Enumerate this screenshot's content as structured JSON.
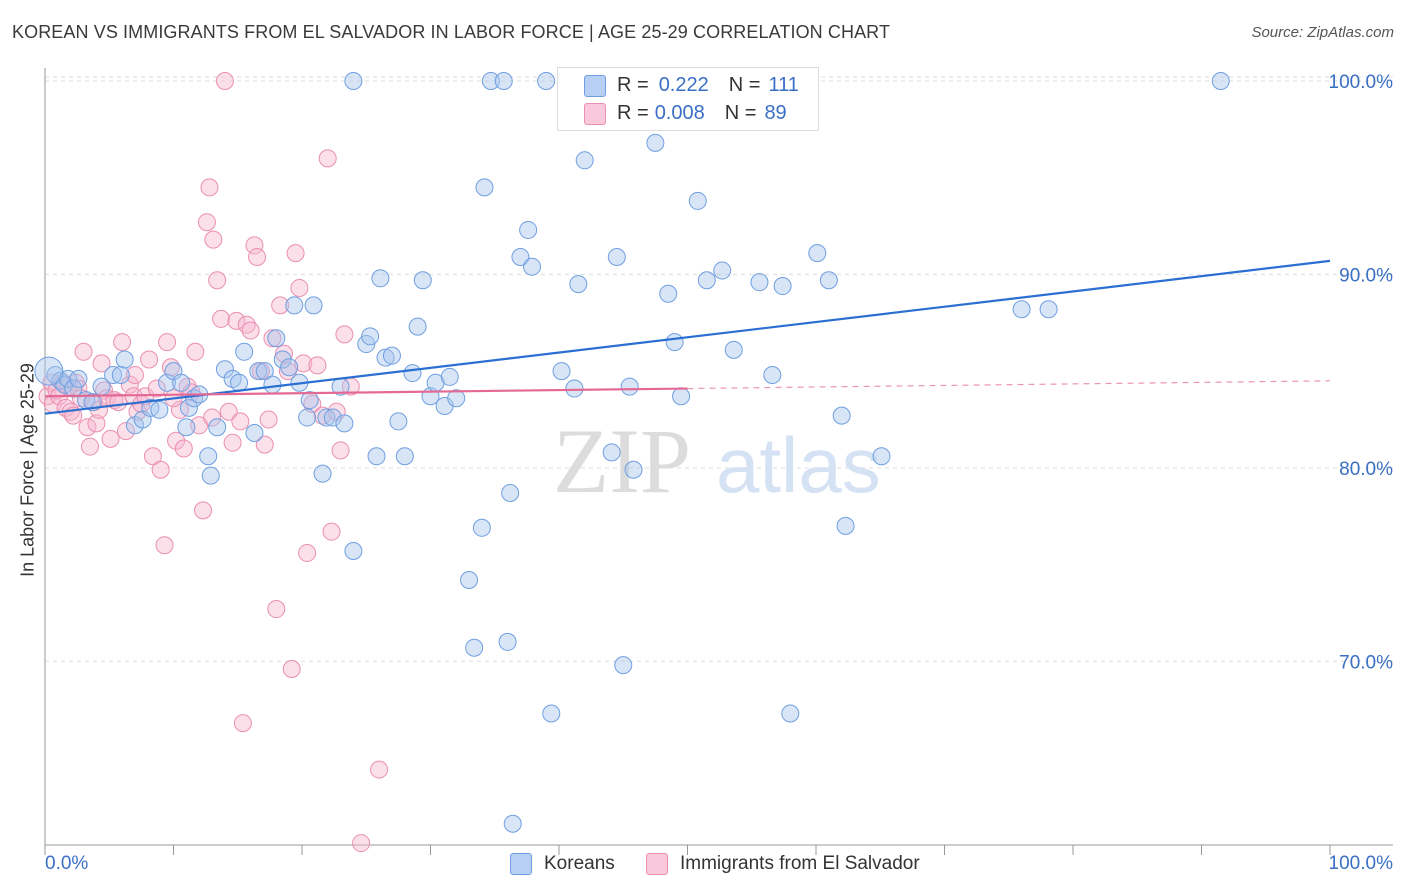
{
  "title": "KOREAN VS IMMIGRANTS FROM EL SALVADOR IN LABOR FORCE | AGE 25-29 CORRELATION CHART",
  "source": "Source: ZipAtlas.com",
  "watermark": {
    "part1": "ZIP",
    "part2": "atlas"
  },
  "legend": {
    "rows": [
      {
        "r_label": "R = ",
        "r_value": "0.222",
        "n_label": "N = ",
        "n_value": "111"
      },
      {
        "r_label": "R = ",
        "r_value": "0.008",
        "n_label": "N = ",
        "n_value": "89"
      }
    ]
  },
  "bottom_legend": {
    "series1": "Koreans",
    "series2": "Immigrants from El Salvador"
  },
  "colors": {
    "blue_fill": "#a9c6ee",
    "blue_stroke": "#6f9fe0",
    "blue_line": "#2a6fd1",
    "pink_fill": "#f6b9cf",
    "pink_stroke": "#ea8fb1",
    "pink_line": "#e46a95",
    "tick_label": "#3a6fc4",
    "grid": "#dddddd"
  },
  "chart_data": {
    "type": "scatter",
    "title": "KOREAN VS IMMIGRANTS FROM EL SALVADOR IN LABOR FORCE | AGE 25-29 CORRELATION CHART",
    "xlabel": "",
    "ylabel": "In Labor Force | Age 25-29",
    "xlim": [
      0,
      100
    ],
    "ylim": [
      60.5,
      101.5
    ],
    "x_tick_labels": [
      "0.0%",
      "100.0%"
    ],
    "y_ticks": [
      70,
      80,
      90,
      100
    ],
    "y_tick_labels": [
      "70.0%",
      "80.0%",
      "90.0%",
      "100.0%"
    ],
    "grid": true,
    "legend_position": "top-center",
    "series": [
      {
        "name": "Koreans",
        "r": 0.222,
        "n": 111,
        "trend": {
          "x": [
            0,
            100
          ],
          "y": [
            82.8,
            90.7
          ]
        },
        "points": [
          [
            0.8,
            84.8
          ],
          [
            1.2,
            84.5
          ],
          [
            1.5,
            84.3
          ],
          [
            1.8,
            84.6
          ],
          [
            2.2,
            84.1
          ],
          [
            2.6,
            84.6
          ],
          [
            3.2,
            83.5
          ],
          [
            3.7,
            83.4
          ],
          [
            4.4,
            84.2
          ],
          [
            5.3,
            84.8
          ],
          [
            5.9,
            84.8
          ],
          [
            6.2,
            85.6
          ],
          [
            7.0,
            82.2
          ],
          [
            7.6,
            82.5
          ],
          [
            8.2,
            83.1
          ],
          [
            8.9,
            83.0
          ],
          [
            9.5,
            84.4
          ],
          [
            10.0,
            85.0
          ],
          [
            10.6,
            84.4
          ],
          [
            11.0,
            82.1
          ],
          [
            11.2,
            83.1
          ],
          [
            11.6,
            83.6
          ],
          [
            12.0,
            83.8
          ],
          [
            12.7,
            80.6
          ],
          [
            12.9,
            79.6
          ],
          [
            13.4,
            82.1
          ],
          [
            14.0,
            85.1
          ],
          [
            14.6,
            84.6
          ],
          [
            15.1,
            84.4
          ],
          [
            15.5,
            86.0
          ],
          [
            16.3,
            81.8
          ],
          [
            16.6,
            85.0
          ],
          [
            17.1,
            85.0
          ],
          [
            17.7,
            84.3
          ],
          [
            18.0,
            86.7
          ],
          [
            18.5,
            85.6
          ],
          [
            19.0,
            85.2
          ],
          [
            19.4,
            88.4
          ],
          [
            19.8,
            84.4
          ],
          [
            20.4,
            82.6
          ],
          [
            20.6,
            83.5
          ],
          [
            20.9,
            88.4
          ],
          [
            21.6,
            79.7
          ],
          [
            21.9,
            82.6
          ],
          [
            22.4,
            82.6
          ],
          [
            23.0,
            84.2
          ],
          [
            23.3,
            82.3
          ],
          [
            24.0,
            75.7
          ],
          [
            24.0,
            100.0
          ],
          [
            25.0,
            86.4
          ],
          [
            25.3,
            86.8
          ],
          [
            25.8,
            80.6
          ],
          [
            26.1,
            89.8
          ],
          [
            26.5,
            85.7
          ],
          [
            27.0,
            85.8
          ],
          [
            27.5,
            82.4
          ],
          [
            28.0,
            80.6
          ],
          [
            28.6,
            84.9
          ],
          [
            29.0,
            87.3
          ],
          [
            29.4,
            89.7
          ],
          [
            30.0,
            83.7
          ],
          [
            30.4,
            84.4
          ],
          [
            31.1,
            83.2
          ],
          [
            31.5,
            84.7
          ],
          [
            32.0,
            83.6
          ],
          [
            33.0,
            74.2
          ],
          [
            33.4,
            70.7
          ],
          [
            34.0,
            76.9
          ],
          [
            34.2,
            94.5
          ],
          [
            34.7,
            100.0
          ],
          [
            35.7,
            100.0
          ],
          [
            36.0,
            71.0
          ],
          [
            36.4,
            61.6
          ],
          [
            36.2,
            78.7
          ],
          [
            37.0,
            90.9
          ],
          [
            37.6,
            92.3
          ],
          [
            37.9,
            90.4
          ],
          [
            39.0,
            100.0
          ],
          [
            39.4,
            67.3
          ],
          [
            40.2,
            85.0
          ],
          [
            41.2,
            84.1
          ],
          [
            41.5,
            89.5
          ],
          [
            42.0,
            95.9
          ],
          [
            44.1,
            80.8
          ],
          [
            44.5,
            90.9
          ],
          [
            45.0,
            69.8
          ],
          [
            45.5,
            84.2
          ],
          [
            45.8,
            79.9
          ],
          [
            47.5,
            96.8
          ],
          [
            48.5,
            89.0
          ],
          [
            49.0,
            86.5
          ],
          [
            49.5,
            83.7
          ],
          [
            50.8,
            93.8
          ],
          [
            51.5,
            89.7
          ],
          [
            52.7,
            90.2
          ],
          [
            53.6,
            86.1
          ],
          [
            55.6,
            89.6
          ],
          [
            56.6,
            84.8
          ],
          [
            57.4,
            89.4
          ],
          [
            58.0,
            67.3
          ],
          [
            59.5,
            100.0
          ],
          [
            60.1,
            91.1
          ],
          [
            61.0,
            89.7
          ],
          [
            62.0,
            82.7
          ],
          [
            62.3,
            77.0
          ],
          [
            65.1,
            80.6
          ],
          [
            76.0,
            88.2
          ],
          [
            78.1,
            88.2
          ],
          [
            91.5,
            100.0
          ],
          [
            0.3,
            85.0
          ]
        ]
      },
      {
        "name": "Immigrants from El Salvador",
        "r": 0.008,
        "n": 89,
        "trend": {
          "x": [
            0,
            50
          ],
          "y": [
            83.7,
            84.1
          ]
        },
        "trend_dashed": {
          "x": [
            50,
            100
          ],
          "y": [
            84.1,
            84.5
          ]
        },
        "points": [
          [
            0.2,
            83.7
          ],
          [
            0.5,
            84.4
          ],
          [
            0.6,
            83.3
          ],
          [
            0.9,
            84.0
          ],
          [
            1.1,
            83.7
          ],
          [
            1.4,
            84.4
          ],
          [
            1.6,
            83.1
          ],
          [
            1.8,
            84.2
          ],
          [
            2.0,
            82.9
          ],
          [
            2.2,
            82.7
          ],
          [
            2.4,
            84.4
          ],
          [
            2.6,
            84.1
          ],
          [
            2.8,
            83.6
          ],
          [
            3.0,
            86.0
          ],
          [
            3.3,
            82.1
          ],
          [
            3.5,
            81.1
          ],
          [
            3.8,
            83.4
          ],
          [
            4.0,
            82.3
          ],
          [
            4.2,
            83.0
          ],
          [
            4.4,
            85.4
          ],
          [
            4.6,
            84.0
          ],
          [
            4.8,
            83.6
          ],
          [
            5.1,
            81.5
          ],
          [
            5.4,
            83.5
          ],
          [
            5.7,
            83.4
          ],
          [
            6.0,
            86.5
          ],
          [
            6.3,
            81.9
          ],
          [
            6.6,
            84.3
          ],
          [
            6.9,
            83.7
          ],
          [
            7.2,
            82.9
          ],
          [
            7.5,
            83.3
          ],
          [
            7.8,
            83.7
          ],
          [
            8.1,
            85.6
          ],
          [
            8.4,
            80.6
          ],
          [
            8.7,
            84.1
          ],
          [
            9.0,
            79.9
          ],
          [
            9.3,
            76.0
          ],
          [
            9.5,
            86.5
          ],
          [
            9.8,
            85.2
          ],
          [
            10.2,
            81.4
          ],
          [
            10.5,
            83.0
          ],
          [
            10.8,
            81.0
          ],
          [
            11.1,
            84.2
          ],
          [
            11.4,
            83.9
          ],
          [
            11.7,
            86.0
          ],
          [
            12.0,
            82.2
          ],
          [
            12.3,
            77.8
          ],
          [
            12.6,
            92.7
          ],
          [
            12.8,
            94.5
          ],
          [
            13.1,
            91.8
          ],
          [
            13.4,
            89.7
          ],
          [
            13.7,
            87.7
          ],
          [
            14.0,
            100.0
          ],
          [
            14.3,
            82.9
          ],
          [
            14.6,
            81.3
          ],
          [
            14.9,
            87.6
          ],
          [
            15.2,
            82.4
          ],
          [
            15.4,
            66.8
          ],
          [
            15.7,
            87.4
          ],
          [
            16.0,
            87.1
          ],
          [
            16.3,
            91.5
          ],
          [
            16.5,
            90.9
          ],
          [
            16.8,
            85.0
          ],
          [
            17.1,
            81.2
          ],
          [
            17.4,
            82.5
          ],
          [
            17.7,
            86.7
          ],
          [
            18.0,
            72.7
          ],
          [
            18.3,
            88.4
          ],
          [
            18.6,
            85.9
          ],
          [
            18.9,
            85.0
          ],
          [
            19.2,
            69.6
          ],
          [
            19.5,
            91.1
          ],
          [
            19.8,
            89.3
          ],
          [
            20.1,
            85.4
          ],
          [
            20.4,
            75.6
          ],
          [
            20.8,
            83.3
          ],
          [
            21.2,
            85.3
          ],
          [
            21.6,
            82.7
          ],
          [
            22.0,
            96.0
          ],
          [
            22.3,
            76.7
          ],
          [
            22.7,
            82.9
          ],
          [
            23.0,
            80.9
          ],
          [
            23.3,
            86.9
          ],
          [
            23.8,
            84.2
          ],
          [
            24.6,
            60.6
          ],
          [
            26.0,
            64.4
          ],
          [
            7.0,
            84.8
          ],
          [
            10.0,
            83.6
          ],
          [
            13.0,
            82.6
          ]
        ]
      }
    ]
  }
}
